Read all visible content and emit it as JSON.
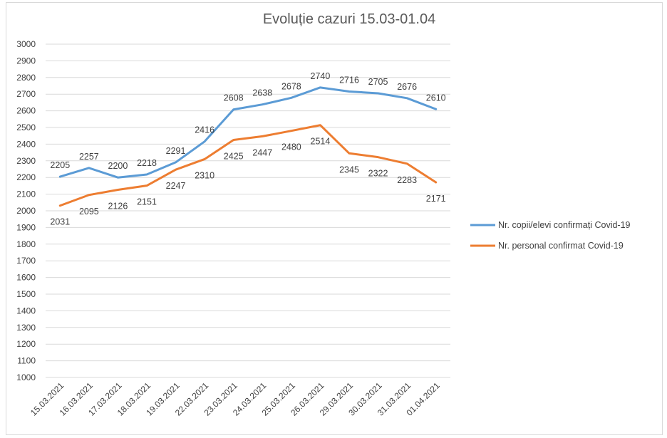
{
  "chart_data": {
    "type": "line",
    "title": "Evoluție cazuri 15.03-01.04",
    "xlabel": "",
    "ylabel": "",
    "ylim": [
      1000,
      3000
    ],
    "ytick_step": 100,
    "grid": true,
    "legend_position": "right",
    "categories": [
      "15.03.2021",
      "16.03.2021",
      "17.03.2021",
      "18.03.2021",
      "19.03.2021",
      "22.03.2021",
      "23.03.2021",
      "24.03.2021",
      "25.03.2021",
      "26.03.2021",
      "29.03.2021",
      "30.03.2021",
      "31.03.2021",
      "01.04.2021"
    ],
    "series": [
      {
        "name": "Nr. copii/elevi confirmați Covid-19",
        "color": "#5b9bd5",
        "label_position": "above",
        "values": [
          2205,
          2257,
          2200,
          2218,
          2291,
          2416,
          2608,
          2638,
          2678,
          2740,
          2716,
          2705,
          2676,
          2610
        ]
      },
      {
        "name": "Nr. personal confirmat Covid-19",
        "color": "#ed7d31",
        "label_position": "below",
        "values": [
          2031,
          2095,
          2126,
          2151,
          2247,
          2310,
          2425,
          2447,
          2480,
          2514,
          2345,
          2322,
          2283,
          2171
        ]
      }
    ]
  }
}
